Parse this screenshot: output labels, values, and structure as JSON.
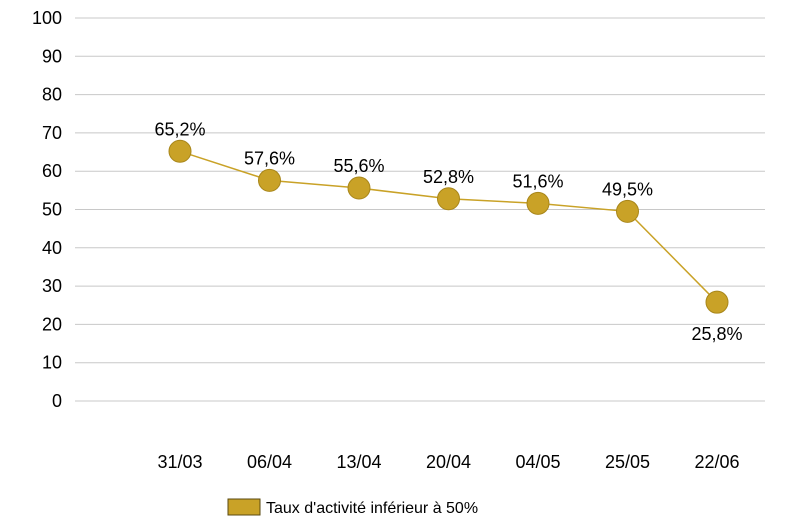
{
  "chart_data": {
    "type": "line",
    "categories": [
      "31/03",
      "06/04",
      "13/04",
      "20/04",
      "04/05",
      "25/05",
      "22/06"
    ],
    "series": [
      {
        "name": "Taux d'activité inférieur à 50%",
        "values": [
          65.2,
          57.6,
          55.6,
          52.8,
          51.6,
          49.5,
          25.8
        ],
        "labels": [
          "65,2%",
          "57,6%",
          "55,6%",
          "52,8%",
          "51,6%",
          "49,5%",
          "25,8%"
        ],
        "label_positions": [
          "above",
          "above",
          "above",
          "above",
          "above",
          "above",
          "below"
        ],
        "color": "#C9A227",
        "marker_stroke": "#A8861A"
      }
    ],
    "ylim": [
      0,
      100
    ],
    "yticks": [
      0,
      10,
      20,
      30,
      40,
      50,
      60,
      70,
      80,
      90,
      100
    ],
    "grid": true,
    "grid_color": "#C8C8C8",
    "legend_position": "bottom",
    "title": "",
    "xlabel": "",
    "ylabel": ""
  }
}
